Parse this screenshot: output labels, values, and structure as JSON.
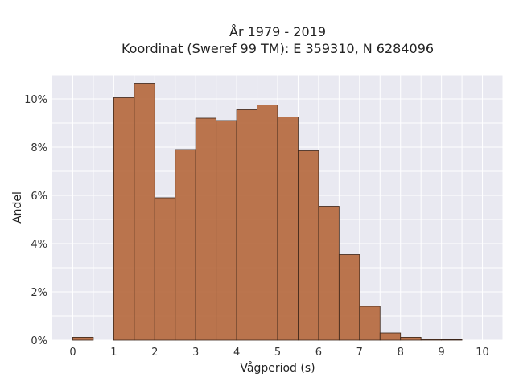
{
  "chart_data": {
    "type": "bar",
    "title": [
      "År 1979 - 2019",
      "Koordinat (Sweref 99 TM): E 359310, N 6284096"
    ],
    "xlabel": "Vågperiod (s)",
    "ylabel": "Andel",
    "xlim": [
      -0.5,
      10.5
    ],
    "ylim": [
      0,
      11
    ],
    "y_unit": "%",
    "bin_width": 0.5,
    "x_ticks": [
      0,
      1,
      2,
      3,
      4,
      5,
      6,
      7,
      8,
      9,
      10
    ],
    "y_ticks": [
      0,
      2,
      4,
      6,
      8,
      10
    ],
    "grid": true,
    "bins": [
      {
        "x0": 0.0,
        "value": 0.12
      },
      {
        "x0": 1.0,
        "value": 10.05
      },
      {
        "x0": 1.5,
        "value": 10.65
      },
      {
        "x0": 2.0,
        "value": 5.9
      },
      {
        "x0": 2.5,
        "value": 7.9
      },
      {
        "x0": 3.0,
        "value": 9.2
      },
      {
        "x0": 3.5,
        "value": 9.1
      },
      {
        "x0": 4.0,
        "value": 9.55
      },
      {
        "x0": 4.5,
        "value": 9.75
      },
      {
        "x0": 5.0,
        "value": 9.25
      },
      {
        "x0": 5.5,
        "value": 7.85
      },
      {
        "x0": 6.0,
        "value": 5.55
      },
      {
        "x0": 6.5,
        "value": 3.55
      },
      {
        "x0": 7.0,
        "value": 1.4
      },
      {
        "x0": 7.5,
        "value": 0.3
      },
      {
        "x0": 8.0,
        "value": 0.12
      },
      {
        "x0": 8.5,
        "value": 0.03
      },
      {
        "x0": 9.0,
        "value": 0.02
      }
    ],
    "colors": {
      "bar": "#b5673b",
      "bar_edge": "#3a2418",
      "plot_bg": "#e9e9f1",
      "grid": "#ffffff"
    }
  }
}
